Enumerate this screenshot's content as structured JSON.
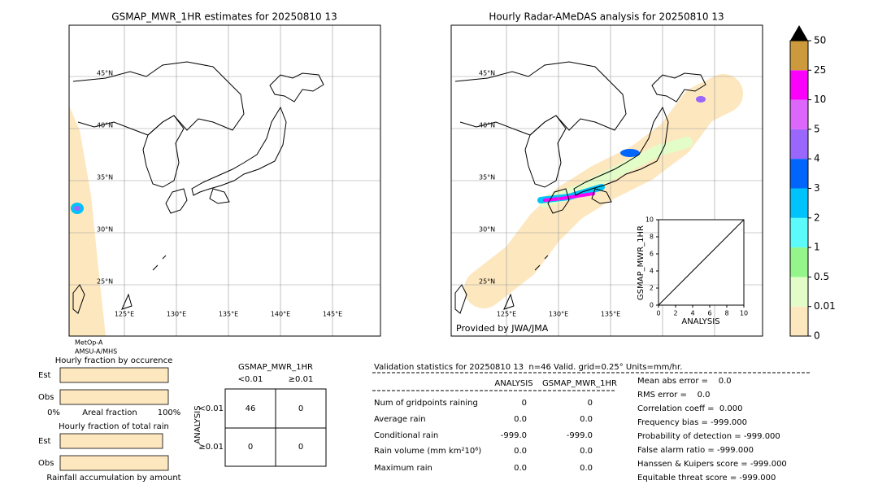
{
  "left_map": {
    "title": "GSMAP_MWR_1HR estimates for 20250810 13",
    "lat_labels": [
      "45°N",
      "40°N",
      "35°N",
      "30°N",
      "25°N"
    ],
    "lon_labels": [
      "125°E",
      "130°E",
      "135°E",
      "140°E",
      "145°E"
    ],
    "satellite_note": [
      "MetOp-A",
      "AMSU-A/MHS"
    ]
  },
  "right_map": {
    "title": "Hourly Radar-AMeDAS analysis for 20250810 13",
    "lat_labels": [
      "45°N",
      "40°N",
      "35°N",
      "30°N",
      "25°N"
    ],
    "lon_labels": [
      "125°E",
      "130°E",
      "135°E"
    ],
    "credit": "Provided by JWA/JMA"
  },
  "inset": {
    "xlabel": "ANALYSIS",
    "ylabel": "GSMAP_MWR_1HR",
    "ticks": [
      "0",
      "2",
      "4",
      "6",
      "8",
      "10"
    ]
  },
  "colorbar": {
    "labels": [
      "0",
      "0.01",
      "0.5",
      "1",
      "2",
      "3",
      "4",
      "5",
      "10",
      "25",
      "50"
    ],
    "colors": [
      "#fde7bf",
      "#e3fdc9",
      "#94f58a",
      "#5cfbfb",
      "#00c3fb",
      "#0066fb",
      "#9a66fb",
      "#dd66fb",
      "#fb00fb",
      "#cc9a3c"
    ]
  },
  "fraction_occurrence": {
    "title": "Hourly fraction by occurence",
    "rows": [
      "Est",
      "Obs"
    ],
    "axis": [
      "0%",
      "Areal fraction",
      "100%"
    ]
  },
  "fraction_total": {
    "title": "Hourly fraction of total rain",
    "rows": [
      "Est",
      "Obs"
    ],
    "footer": "Rainfall accumulation by amount"
  },
  "contingency": {
    "title": "GSMAP_MWR_1HR",
    "columns": [
      "<0.01",
      "≥0.01"
    ],
    "row_axis": "ANALYSIS",
    "rows": [
      "<0.01",
      "≥0.01"
    ],
    "cells": [
      [
        "46",
        "0"
      ],
      [
        "0",
        "0"
      ]
    ]
  },
  "validation": {
    "header": "Validation statistics for 20250810 13  n=46 Valid. grid=0.25° Units=mm/hr.",
    "columns": [
      "ANALYSIS",
      "GSMAP_MWR_1HR"
    ],
    "rows": [
      [
        "Num of gridpoints raining",
        "0",
        "0"
      ],
      [
        "Average rain",
        "0.0",
        "0.0"
      ],
      [
        "Conditional rain",
        "-999.0",
        "-999.0"
      ],
      [
        "Rain volume (mm km²10⁶)",
        "0.0",
        "0.0"
      ],
      [
        "Maximum rain",
        "0.0",
        "0.0"
      ]
    ],
    "scores": [
      "Mean abs error =    0.0",
      "RMS error =    0.0",
      "Correlation coeff =  0.000",
      "Frequency bias = -999.000",
      "Probability of detection = -999.000",
      "False alarm ratio = -999.000",
      "Hanssen & Kuipers score = -999.000",
      "Equitable threat score = -999.000"
    ]
  }
}
